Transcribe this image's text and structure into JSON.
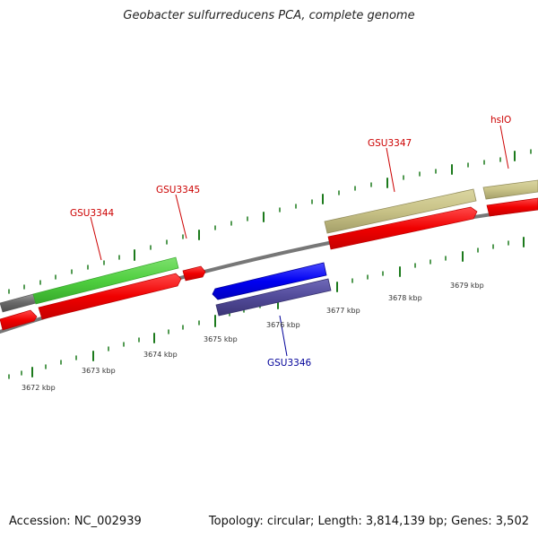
{
  "title": "Geobacter sulfurreducens PCA, complete genome",
  "footer": {
    "accession": "Accession: NC_002939",
    "summary": "Topology: circular; Length: 3,814,139 bp; Genes: 3,502"
  },
  "scale": {
    "tick_labels": [
      "3672 kbp",
      "3673 kbp",
      "3674 kbp",
      "3675 kbp",
      "3676 kbp",
      "3677 kbp",
      "3678 kbp",
      "3679 kbp"
    ]
  },
  "genes": [
    {
      "name": "GSU3344",
      "color": "#cc0000"
    },
    {
      "name": "GSU3345",
      "color": "#cc0000"
    },
    {
      "name": "GSU3346",
      "color": "#000099"
    },
    {
      "name": "GSU3347",
      "color": "#cc0000"
    },
    {
      "name": "hslO",
      "color": "#cc0000"
    }
  ],
  "colors": {
    "forward_strand_gene": "#ff0000",
    "reverse_strand_gene": "#0000ff",
    "category_green": "#4cd13f",
    "category_olive": "#c9c38a",
    "category_purple": "#504a98",
    "category_gray": "#6b6b6b",
    "axis_ticks": "#1a7a1a",
    "backbone": "#7a7a7a"
  }
}
